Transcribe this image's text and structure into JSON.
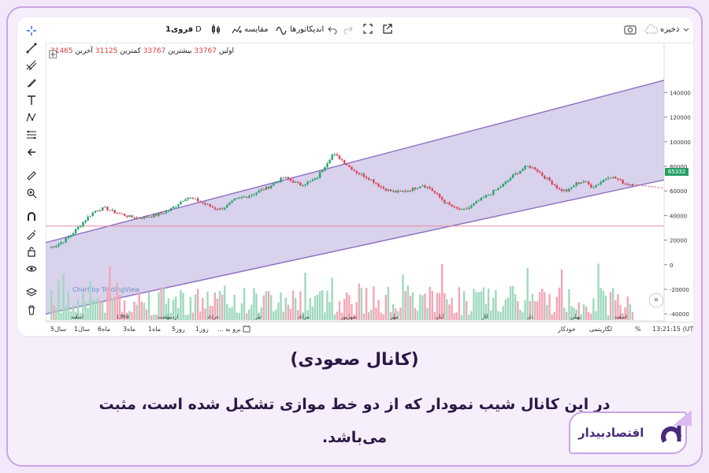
{
  "toolbar": {
    "symbol": "فروی1",
    "interval": "D",
    "compare_label": "مقایسه",
    "indicators_label": "اندیکاتورها",
    "save_label": "ذخیره"
  },
  "legend": {
    "first_label": "اولین",
    "first_value": "33767",
    "high_label": "بیشترین",
    "high_value": "33767",
    "low_label": "کمترین",
    "low_value": "31125",
    "last_label": "آخرین",
    "last_value": "31465"
  },
  "left_tools": [
    "crosshair-icon",
    "trend-line-icon",
    "pitchfork-icon",
    "brush-icon",
    "text-icon",
    "pattern-icon",
    "measure-fib-icon",
    "back-arrow-icon",
    "ruler-icon",
    "zoom-in-icon",
    "magnet-icon",
    "lock-drawing-icon",
    "unlock-icon",
    "eye-icon",
    "layers-icon",
    "trash-icon"
  ],
  "chart": {
    "watermark": "Chart by TradingView",
    "last_price": "65332",
    "y_ticks": [
      "140000",
      "120000",
      "100000",
      "80000",
      "60000",
      "40000",
      "20000",
      "0",
      "-20000",
      "-40000"
    ],
    "x_ticks": [
      "اسفند",
      "1399",
      "اردیبهشت",
      "خرداد",
      "تیر",
      "مرداد",
      "شهریور",
      "مهر",
      "آبان",
      "آذر",
      "دی",
      "بهمن",
      "اسفند"
    ]
  },
  "bottom": {
    "ranges": [
      "5سال",
      "1سال",
      "6ماه",
      "3ماه",
      "1ماه",
      "5روز",
      "1روز"
    ],
    "goto": "برو به ...",
    "time": "13:21:15 (UTC+4:30)",
    "percent": "%",
    "log": "لگاریتمی",
    "auto": "خودکار"
  },
  "caption": {
    "title": "(کانال صعودی)",
    "body": "در این کانال شیب نمودار که از دو خط موازی تشکیل شده است، مثبت می‌باشد."
  },
  "brand": {
    "name": "اقتصادبیدار"
  },
  "colors": {
    "channel_fill": "#c7bfe4",
    "channel_line": "#8f6fc4",
    "up": "#26a269",
    "down": "#e0405a",
    "vol_up": "#9fd9bd",
    "vol_down": "#f2a7b6",
    "accent": "#4a2a7a"
  },
  "chart_data": {
    "type": "candlestick",
    "ylim": [
      -45000,
      155000
    ],
    "y_ticks": [
      140000,
      120000,
      100000,
      80000,
      60000,
      40000,
      20000,
      0,
      -20000,
      -40000
    ],
    "x_labels": [
      "اسفند",
      "1399",
      "اردیبهشت",
      "خرداد",
      "تیر",
      "مرداد",
      "شهریور",
      "مهر",
      "آبان",
      "آذر",
      "دی",
      "بهمن",
      "اسفند"
    ],
    "close_path": [
      14000,
      16000,
      20000,
      26000,
      33000,
      40000,
      45000,
      46000,
      43000,
      41000,
      39000,
      38000,
      39000,
      40000,
      42000,
      45000,
      50000,
      55000,
      53000,
      50000,
      47000,
      45000,
      48000,
      53000,
      55000,
      57000,
      60000,
      63000,
      67000,
      71000,
      68000,
      65000,
      67000,
      70000,
      80000,
      90000,
      86000,
      80000,
      75000,
      72000,
      68000,
      63000,
      60000,
      59000,
      60000,
      62000,
      65000,
      62000,
      56000,
      50000,
      46000,
      44000,
      47000,
      52000,
      56000,
      60000,
      65000,
      71000,
      76000,
      80000,
      78000,
      72000,
      67000,
      61000,
      60000,
      66000,
      68000,
      63000,
      67000,
      72000,
      70000,
      66000,
      65332
    ],
    "horizontal_line": 31465,
    "last_price": 65332
  }
}
